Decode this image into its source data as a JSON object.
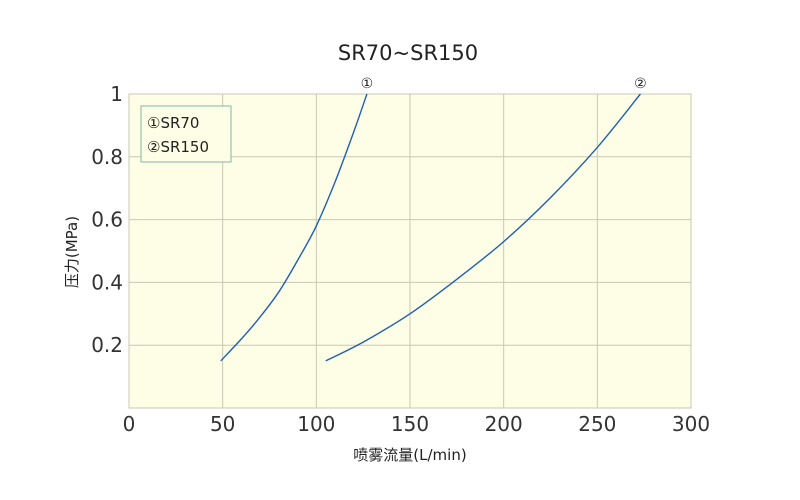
{
  "chart_data": {
    "type": "line",
    "title": "SR70~SR150",
    "xlabel": "喷雾流量(L/min)",
    "ylabel": "压力(MPa)",
    "xlim": [
      0,
      300
    ],
    "ylim": [
      0,
      1
    ],
    "x_ticks": [
      "0",
      "50",
      "100",
      "150",
      "200",
      "250",
      "300"
    ],
    "y_ticks": [
      "0.2",
      "0.4",
      "0.6",
      "0.8",
      "1"
    ],
    "grid": true,
    "legend_position": "top-left",
    "legend": [
      "①SR70",
      "②SR150"
    ],
    "series": [
      {
        "name": "①SR70",
        "end_marker": "①",
        "color": "#1f5fb4",
        "x": [
          49,
          60,
          70,
          80,
          90,
          100,
          110,
          120,
          127
        ],
        "y": [
          0.15,
          0.22,
          0.29,
          0.37,
          0.47,
          0.58,
          0.72,
          0.88,
          1.0
        ]
      },
      {
        "name": "②SR150",
        "end_marker": "②",
        "color": "#1f5fb4",
        "x": [
          105,
          125,
          150,
          175,
          200,
          225,
          250,
          273
        ],
        "y": [
          0.15,
          0.21,
          0.3,
          0.41,
          0.53,
          0.67,
          0.83,
          1.0
        ]
      }
    ],
    "plot_bg": "#fefee6",
    "grid_color": "#c8c8b4",
    "legend_border": "#7fb8a8"
  }
}
